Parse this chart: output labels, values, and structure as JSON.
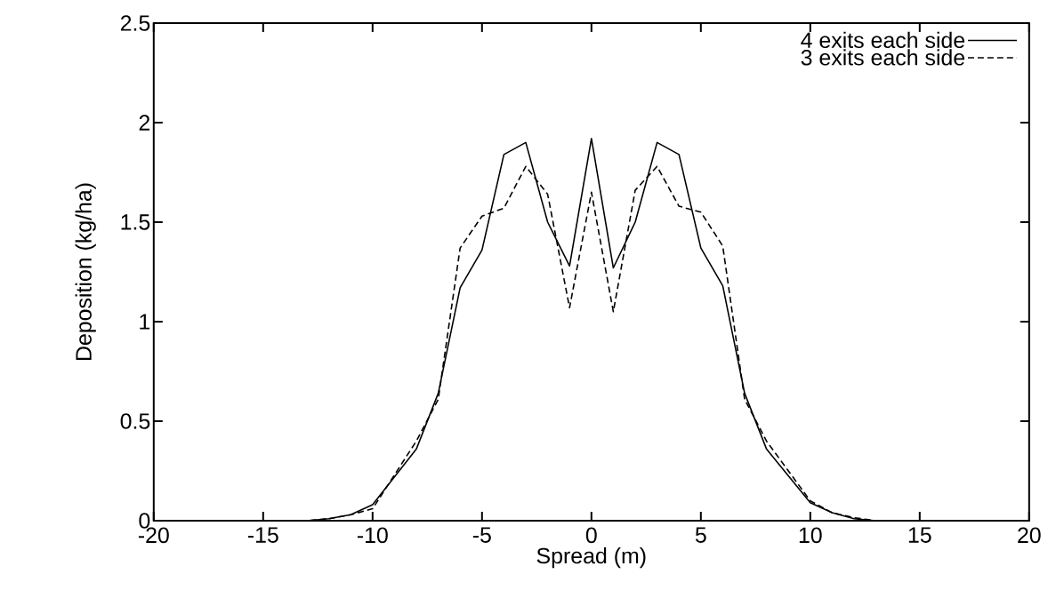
{
  "chart_data": {
    "type": "line",
    "xlabel": "Spread (m)",
    "ylabel": "Deposition (kg/ha)",
    "xlim": [
      -20,
      20
    ],
    "ylim": [
      0,
      2.5
    ],
    "xticks": [
      -20,
      -15,
      -10,
      -5,
      0,
      5,
      10,
      15,
      20
    ],
    "yticks": [
      0,
      0.5,
      1,
      1.5,
      2,
      2.5
    ],
    "legend": "top right",
    "series": [
      {
        "name": "4 exits each side",
        "color": "#000000",
        "line_style": "solid",
        "x": [
          -20,
          -13,
          -12,
          -11,
          -10,
          -8,
          -7,
          -6,
          -5,
          -4,
          -3,
          -2,
          -1,
          0,
          1,
          2,
          3,
          4,
          5,
          6,
          7,
          8,
          10,
          11,
          12,
          13,
          20
        ],
        "values": [
          0,
          0,
          0.01,
          0.03,
          0.08,
          0.36,
          0.64,
          1.17,
          1.36,
          1.84,
          1.9,
          1.5,
          1.28,
          1.92,
          1.27,
          1.5,
          1.9,
          1.84,
          1.37,
          1.18,
          0.64,
          0.36,
          0.09,
          0.04,
          0.01,
          0,
          0
        ]
      },
      {
        "name": "3 exits each side",
        "color": "#000000",
        "line_style": "dashed",
        "x": [
          -20,
          -13,
          -12,
          -11,
          -10,
          -8,
          -7,
          -6,
          -5,
          -4,
          -3,
          -2,
          -1,
          0,
          1,
          2,
          3,
          4,
          5,
          6,
          7,
          8,
          10,
          11,
          12,
          13,
          20
        ],
        "values": [
          0,
          0,
          0.01,
          0.03,
          0.06,
          0.4,
          0.61,
          1.37,
          1.53,
          1.57,
          1.78,
          1.64,
          1.07,
          1.65,
          1.05,
          1.66,
          1.78,
          1.58,
          1.55,
          1.38,
          0.61,
          0.4,
          0.1,
          0.04,
          0.015,
          0,
          0
        ]
      }
    ]
  }
}
